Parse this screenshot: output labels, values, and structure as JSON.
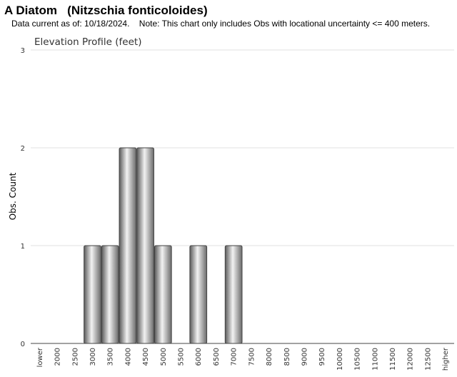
{
  "header": {
    "title": "A Diatom   (Nitzschia fonticoloides)",
    "subtitle": "Data current as of: 10/18/2024.    Note: This chart only includes Obs with locational uncertainty <= 400 meters."
  },
  "chart_data": {
    "type": "bar",
    "title": "Elevation Profile (feet)",
    "xlabel": "",
    "ylabel": "Obs. Count",
    "ylim": [
      0,
      3
    ],
    "yticks": [
      0,
      1,
      2,
      3
    ],
    "grid": true,
    "categories": [
      "lower",
      "2000",
      "2500",
      "3000",
      "3500",
      "4000",
      "4500",
      "5000",
      "5500",
      "6000",
      "6500",
      "7000",
      "7500",
      "8000",
      "8500",
      "9000",
      "9500",
      "10000",
      "10500",
      "11000",
      "11500",
      "12000",
      "12500",
      "higher"
    ],
    "values": [
      0,
      0,
      0,
      1,
      1,
      2,
      2,
      1,
      0,
      1,
      0,
      1,
      0,
      0,
      0,
      0,
      0,
      0,
      0,
      0,
      0,
      0,
      0,
      0
    ]
  }
}
